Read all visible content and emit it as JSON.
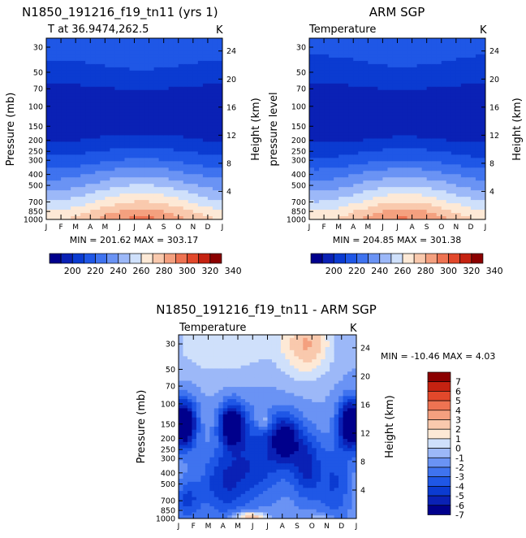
{
  "chart_data": [
    {
      "type": "heatmap",
      "title": "N1850_191216_f19_tn11 (yrs 1)",
      "subtitle": "T at 36.9474,262.5",
      "units": "K",
      "xlabel": "",
      "ylabel": "Pressure (mb)",
      "ylabel_right": "Height (km)",
      "x_ticks": [
        "J",
        "F",
        "M",
        "A",
        "M",
        "J",
        "J",
        "A",
        "S",
        "O",
        "N",
        "D",
        "J"
      ],
      "y_ticks": [
        "30",
        "50",
        "70",
        "100",
        "150",
        "200",
        "250",
        "300",
        "400",
        "500",
        "700",
        "850",
        "1000"
      ],
      "y_ticks_right": [
        "24",
        "20",
        "16",
        "12",
        "8",
        "4"
      ],
      "stats": "MIN = 201.62  MAX = 303.17",
      "levels": [
        200,
        210,
        220,
        230,
        240,
        250,
        260,
        270,
        280,
        290,
        300,
        310,
        320,
        330,
        340
      ],
      "profile": [
        {
          "p": 30,
          "t": 232
        },
        {
          "p": 50,
          "t": 222
        },
        {
          "p": 70,
          "t": 214
        },
        {
          "p": 100,
          "t": 210
        },
        {
          "p": 150,
          "t": 211
        },
        {
          "p": 200,
          "t": 216
        },
        {
          "p": 250,
          "t": 225
        },
        {
          "p": 300,
          "t": 232
        },
        {
          "p": 400,
          "t": 247
        },
        {
          "p": 500,
          "t": 258
        },
        {
          "p": 700,
          "t": 276
        },
        {
          "p": 850,
          "t": 288
        },
        {
          "p": 1000,
          "t": 296
        }
      ],
      "seasonal_amplitude_surface": 12
    },
    {
      "type": "heatmap",
      "title": "ARM SGP",
      "subtitle": "Temperature",
      "units": "K",
      "ylabel": "pressure level",
      "ylabel_right": "Height (km)",
      "x_ticks": [
        "J",
        "F",
        "M",
        "A",
        "M",
        "J",
        "J",
        "A",
        "S",
        "O",
        "N",
        "D",
        "J"
      ],
      "y_ticks": [
        "30",
        "50",
        "70",
        "100",
        "150",
        "200",
        "250",
        "300",
        "400",
        "500",
        "700",
        "850",
        "1000"
      ],
      "y_ticks_right": [
        "24",
        "20",
        "16",
        "12",
        "8",
        "4"
      ],
      "stats": "MIN = 204.85  MAX = 301.38",
      "levels": [
        200,
        210,
        220,
        230,
        240,
        250,
        260,
        270,
        280,
        290,
        300,
        310,
        320,
        330,
        340
      ],
      "profile": [
        {
          "p": 30,
          "t": 230
        },
        {
          "p": 50,
          "t": 221
        },
        {
          "p": 70,
          "t": 214
        },
        {
          "p": 100,
          "t": 209
        },
        {
          "p": 150,
          "t": 210
        },
        {
          "p": 200,
          "t": 215
        },
        {
          "p": 250,
          "t": 224
        },
        {
          "p": 300,
          "t": 231
        },
        {
          "p": 400,
          "t": 246
        },
        {
          "p": 500,
          "t": 257
        },
        {
          "p": 700,
          "t": 275
        },
        {
          "p": 850,
          "t": 287
        },
        {
          "p": 1000,
          "t": 295
        }
      ],
      "seasonal_amplitude_surface": 12
    },
    {
      "type": "heatmap",
      "title": "N1850_191216_f19_tn11 - ARM SGP",
      "subtitle": "Temperature",
      "units": "K",
      "ylabel": "Pressure (mb)",
      "ylabel_right": "Height (km)",
      "x_ticks": [
        "J",
        "F",
        "M",
        "A",
        "M",
        "J",
        "J",
        "A",
        "S",
        "O",
        "N",
        "D",
        "J"
      ],
      "y_ticks": [
        "30",
        "50",
        "70",
        "100",
        "150",
        "200",
        "250",
        "300",
        "400",
        "500",
        "700",
        "850",
        "1000"
      ],
      "y_ticks_right": [
        "24",
        "20",
        "16",
        "12",
        "8",
        "4"
      ],
      "stats": "MIN = -10.46  MAX =    4.03",
      "levels": [
        -7,
        -6,
        -5,
        -4,
        -3,
        -2,
        -1,
        0,
        1,
        2,
        3,
        4,
        5,
        6,
        7
      ]
    }
  ],
  "colorbar_top_labels": [
    "200",
    "220",
    "240",
    "260",
    "280",
    "300",
    "320",
    "340"
  ],
  "colorbar_diff_labels": [
    "7",
    "6",
    "5",
    "4",
    "3",
    "2",
    "1",
    "0",
    "-1",
    "-2",
    "-3",
    "-4",
    "-5",
    "-6",
    "-7"
  ],
  "colors": {
    "temp_palette": [
      "#00008c",
      "#0a21b5",
      "#0b3bd1",
      "#1f57e6",
      "#3f73ef",
      "#6a93f4",
      "#9cb8f8",
      "#cfe0fb",
      "#fde9d6",
      "#f9c9ad",
      "#f4a07f",
      "#ee7352",
      "#e2482b",
      "#c52211",
      "#8b0000"
    ],
    "diff_palette": [
      "#00008c",
      "#0a21b5",
      "#0b3bd1",
      "#1f57e6",
      "#3f73ef",
      "#6a93f4",
      "#9cb8f8",
      "#cfe0fb",
      "#fde9d6",
      "#f9c9ad",
      "#f4a07f",
      "#ee7352",
      "#e2482b",
      "#c52211",
      "#8b0000"
    ]
  }
}
